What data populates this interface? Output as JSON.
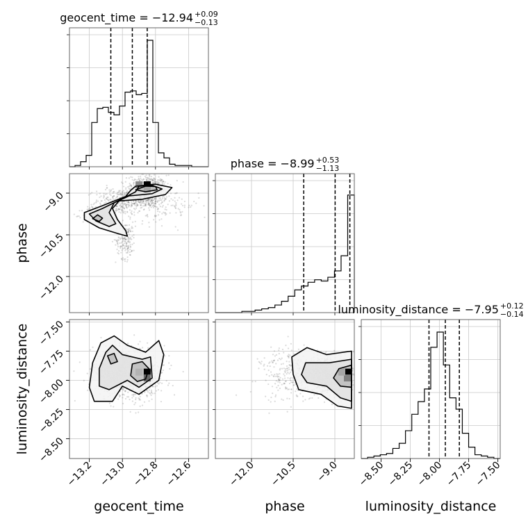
{
  "chart_data": {
    "type": "corner",
    "parameters": [
      "geocent_time",
      "phase",
      "luminosity_distance"
    ],
    "titles": [
      {
        "param": "geocent_time",
        "text": "geocent_time = −12.94",
        "sup": "+0.09",
        "sub": "−0.13"
      },
      {
        "param": "phase",
        "text": "phase = −8.99",
        "sup": "+0.53",
        "sub": "−1.13"
      },
      {
        "param": "luminosity_distance",
        "text": "luminosity_distance = −7.95",
        "sup": "+0.12",
        "sub": "−0.14"
      }
    ],
    "axis_labels": {
      "x": [
        "geocent_time",
        "phase",
        "luminosity_distance"
      ],
      "y": [
        "phase",
        "luminosity_distance"
      ]
    },
    "ranges": {
      "geocent_time": [
        -13.32,
        -12.48
      ],
      "phase": [
        -13.3,
        -8.3
      ],
      "luminosity_distance": [
        -8.67,
        -7.48
      ]
    },
    "ticks": {
      "geocent_time": {
        "values": [
          -13.2,
          -13.0,
          -12.8,
          -12.6
        ],
        "labels": [
          "−13.2",
          "−13.0",
          "−12.8",
          "−12.6"
        ]
      },
      "phase": {
        "values": [
          -12.0,
          -10.5,
          -9.0
        ],
        "labels": [
          "−12.0",
          "−10.5",
          "−9.0"
        ]
      },
      "luminosity_distance": {
        "values": [
          -8.5,
          -8.25,
          -8.0,
          -7.75,
          -7.5
        ],
        "labels": [
          "−8.50",
          "−8.25",
          "−8.00",
          "−7.75",
          "−7.50"
        ]
      }
    },
    "quantiles": {
      "geocent_time": [
        -13.07,
        -12.94,
        -12.85
      ],
      "phase": [
        -10.12,
        -8.99,
        -8.46
      ],
      "luminosity_distance": [
        -8.09,
        -7.95,
        -7.83
      ]
    },
    "histograms": {
      "geocent_time": [
        0.0,
        0.01,
        0.04,
        0.09,
        0.35,
        0.46,
        0.47,
        0.43,
        0.41,
        0.48,
        0.59,
        0.6,
        0.57,
        0.58,
        1.0,
        0.35,
        0.11,
        0.07,
        0.02,
        0.01,
        0.01,
        0.01,
        0.0,
        0.0,
        0.0
      ],
      "phase": [
        0.0,
        0.0,
        0.0,
        0.0,
        0.01,
        0.01,
        0.02,
        0.03,
        0.04,
        0.06,
        0.09,
        0.13,
        0.18,
        0.21,
        0.24,
        0.26,
        0.25,
        0.28,
        0.33,
        0.45,
        0.93
      ],
      "luminosity_distance": [
        0.0,
        0.01,
        0.02,
        0.03,
        0.04,
        0.08,
        0.12,
        0.22,
        0.35,
        0.45,
        0.55,
        0.88,
        1.0,
        0.74,
        0.48,
        0.39,
        0.2,
        0.09,
        0.03,
        0.02,
        0.01,
        0.0
      ]
    },
    "scatter": {
      "phase_vs_geocent_time": {
        "clusters": [
          {
            "center": [
              -12.85,
              -8.95
            ],
            "spread": [
              0.1,
              0.5
            ],
            "count": 650
          },
          {
            "center": [
              -13.02,
              -9.3
            ],
            "spread": [
              0.12,
              0.4
            ],
            "count": 300
          },
          {
            "center": [
              -13.16,
              -9.8
            ],
            "spread": [
              0.07,
              0.25
            ],
            "count": 130
          },
          {
            "center": [
              -12.98,
              -10.7
            ],
            "spread": [
              0.05,
              0.55
            ],
            "count": 160
          },
          {
            "center": [
              -12.75,
              -9.45
            ],
            "spread": [
              0.18,
              0.55
            ],
            "count": 120
          }
        ]
      },
      "luminosity_distance_vs_geocent_time": {
        "clusters": [
          {
            "center": [
              -13.05,
              -7.92
            ],
            "spread": [
              0.09,
              0.15
            ],
            "count": 520
          },
          {
            "center": [
              -12.87,
              -7.96
            ],
            "spread": [
              0.07,
              0.13
            ],
            "count": 520
          },
          {
            "center": [
              -12.96,
              -7.95
            ],
            "spread": [
              0.18,
              0.22
            ],
            "count": 300
          }
        ]
      },
      "luminosity_distance_vs_phase": {
        "clusters": [
          {
            "center": [
              -9.2,
              -7.96
            ],
            "spread": [
              0.8,
              0.12
            ],
            "count": 900
          },
          {
            "center": [
              -10.6,
              -7.95
            ],
            "spread": [
              0.9,
              0.2
            ],
            "count": 250
          }
        ]
      }
    },
    "contours": {
      "phase_vs_geocent_time": [
        {
          "level": "outer",
          "points": [
            [
              -12.92,
              -8.75
            ],
            [
              -12.8,
              -8.68
            ],
            [
              -12.7,
              -8.8
            ],
            [
              -12.74,
              -9.05
            ],
            [
              -12.88,
              -9.22
            ],
            [
              -13.02,
              -9.28
            ],
            [
              -13.06,
              -9.55
            ],
            [
              -13.03,
              -9.95
            ],
            [
              -12.98,
              -10.35
            ],
            [
              -12.97,
              -10.55
            ],
            [
              -13.03,
              -10.45
            ],
            [
              -13.14,
              -10.25
            ],
            [
              -13.23,
              -9.95
            ],
            [
              -13.23,
              -9.7
            ],
            [
              -13.12,
              -9.45
            ],
            [
              -12.98,
              -9.12
            ],
            [
              -12.95,
              -8.9
            ]
          ]
        },
        {
          "level": "middle",
          "points": [
            [
              -12.9,
              -8.75
            ],
            [
              -12.82,
              -8.72
            ],
            [
              -12.76,
              -8.85
            ],
            [
              -12.82,
              -9.02
            ],
            [
              -12.96,
              -9.1
            ],
            [
              -13.05,
              -9.35
            ],
            [
              -13.08,
              -9.7
            ],
            [
              -13.04,
              -10.1
            ],
            [
              -13.08,
              -10.2
            ],
            [
              -13.16,
              -10.0
            ],
            [
              -13.2,
              -9.75
            ],
            [
              -13.12,
              -9.55
            ],
            [
              -13.0,
              -9.2
            ],
            [
              -12.92,
              -8.95
            ]
          ]
        },
        {
          "level": "inner",
          "points": [
            [
              -12.86,
              -8.75
            ],
            [
              -12.8,
              -8.76
            ],
            [
              -12.79,
              -8.88
            ],
            [
              -12.86,
              -8.95
            ],
            [
              -12.92,
              -8.88
            ]
          ]
        },
        {
          "level": "inner",
          "points": [
            [
              -13.15,
              -9.78
            ],
            [
              -13.12,
              -9.9
            ],
            [
              -13.14,
              -10.02
            ],
            [
              -13.18,
              -9.92
            ]
          ]
        }
      ],
      "luminosity_distance_vs_geocent_time": [
        {
          "level": "outer",
          "points": [
            [
              -13.13,
              -7.68
            ],
            [
              -13.05,
              -7.62
            ],
            [
              -12.97,
              -7.7
            ],
            [
              -12.86,
              -7.76
            ],
            [
              -12.78,
              -7.66
            ],
            [
              -12.75,
              -7.78
            ],
            [
              -12.78,
              -8.0
            ],
            [
              -12.9,
              -8.12
            ],
            [
              -13.0,
              -8.05
            ],
            [
              -13.06,
              -8.18
            ],
            [
              -13.17,
              -8.18
            ],
            [
              -13.2,
              -8.06
            ],
            [
              -13.18,
              -7.85
            ]
          ]
        },
        {
          "level": "middle",
          "points": [
            [
              -13.1,
              -7.76
            ],
            [
              -13.06,
              -7.7
            ],
            [
              -13.0,
              -7.78
            ],
            [
              -12.88,
              -7.82
            ],
            [
              -12.83,
              -7.8
            ],
            [
              -12.82,
              -7.98
            ],
            [
              -12.9,
              -8.06
            ],
            [
              -12.97,
              -8.0
            ],
            [
              -13.08,
              -8.08
            ],
            [
              -13.14,
              -8.05
            ],
            [
              -13.14,
              -7.9
            ]
          ]
        },
        {
          "level": "inner",
          "points": [
            [
              -12.94,
              -7.86
            ],
            [
              -12.88,
              -7.84
            ],
            [
              -12.84,
              -7.9
            ],
            [
              -12.86,
              -7.99
            ],
            [
              -12.91,
              -8.01
            ],
            [
              -12.95,
              -7.96
            ]
          ]
        },
        {
          "level": "inner",
          "points": [
            [
              -13.09,
              -7.79
            ],
            [
              -13.05,
              -7.77
            ],
            [
              -13.03,
              -7.84
            ],
            [
              -13.07,
              -7.86
            ]
          ]
        }
      ],
      "luminosity_distance_vs_phase": [
        {
          "level": "outer",
          "points": [
            [
              -8.4,
              -7.75
            ],
            [
              -9.3,
              -7.78
            ],
            [
              -10.0,
              -7.72
            ],
            [
              -10.55,
              -7.8
            ],
            [
              -10.5,
              -7.95
            ],
            [
              -10.3,
              -8.08
            ],
            [
              -9.5,
              -8.12
            ],
            [
              -8.9,
              -8.22
            ],
            [
              -8.4,
              -8.24
            ]
          ]
        },
        {
          "level": "middle",
          "points": [
            [
              -8.4,
              -7.82
            ],
            [
              -9.2,
              -7.85
            ],
            [
              -10.05,
              -7.85
            ],
            [
              -10.2,
              -7.95
            ],
            [
              -10.0,
              -8.02
            ],
            [
              -9.3,
              -8.05
            ],
            [
              -8.8,
              -8.15
            ],
            [
              -8.4,
              -8.18
            ]
          ]
        },
        {
          "level": "inner",
          "points": [
            [
              -8.4,
              -7.87
            ],
            [
              -8.85,
              -7.9
            ],
            [
              -9.05,
              -7.98
            ],
            [
              -8.8,
              -8.05
            ],
            [
              -8.4,
              -8.06
            ]
          ]
        }
      ]
    },
    "hotspots": [
      {
        "panel": "phase_vs_geocent_time",
        "x": -12.85,
        "y": -8.7,
        "weight": 1.0
      },
      {
        "panel": "phase_vs_geocent_time",
        "x": -12.9,
        "y": -8.7,
        "weight": 0.45
      },
      {
        "panel": "phase_vs_geocent_time",
        "x": -12.85,
        "y": -8.85,
        "weight": 0.35
      },
      {
        "panel": "luminosity_distance_vs_geocent_time",
        "x": -12.85,
        "y": -7.93,
        "weight": 1.0
      },
      {
        "panel": "luminosity_distance_vs_geocent_time",
        "x": -12.85,
        "y": -7.98,
        "weight": 0.6
      },
      {
        "panel": "luminosity_distance_vs_geocent_time",
        "x": -12.9,
        "y": -7.93,
        "weight": 0.3
      },
      {
        "panel": "luminosity_distance_vs_phase",
        "x": -8.55,
        "y": -7.93,
        "weight": 1.0
      },
      {
        "panel": "luminosity_distance_vs_phase",
        "x": -8.55,
        "y": -7.98,
        "weight": 0.5
      },
      {
        "panel": "luminosity_distance_vs_phase",
        "x": -8.75,
        "y": -7.93,
        "weight": 0.35
      }
    ],
    "grid": true,
    "line_color": "#000000",
    "point_color": "#555555"
  }
}
